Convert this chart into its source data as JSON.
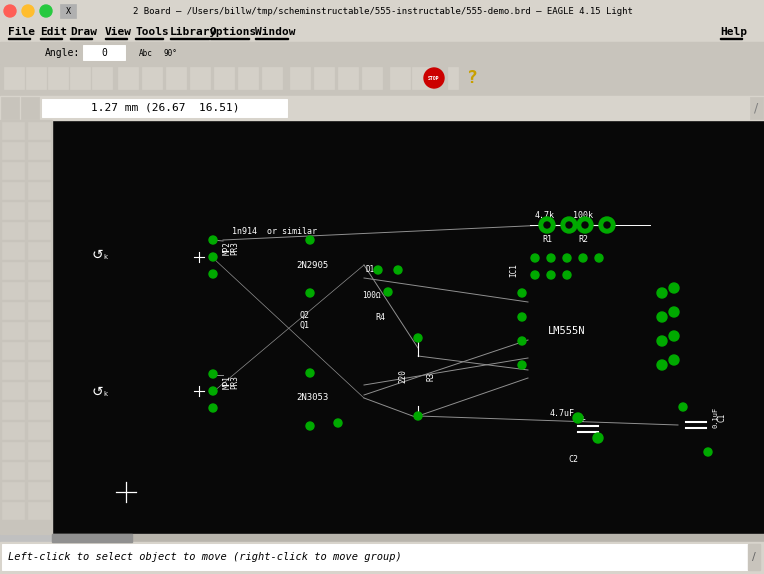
{
  "title_bar": "2 Board – /Users/billw/tmp/scheminstructable/555-instructable/555-demo.brd – EAGLE 4.15 Light",
  "menu_labels": [
    "File",
    "Edit",
    "Draw",
    "View",
    "Tools",
    "Library",
    "Options",
    "Window",
    "Help"
  ],
  "menu_x": [
    8,
    40,
    70,
    105,
    135,
    170,
    210,
    255,
    720
  ],
  "status_bar": "Left-click to select object to move (right-click to move group)",
  "coord_bar": "1.27 mm (26.67  16.51)",
  "bg_color": "#c0c0c0",
  "titlebar_bg": "#d8d4cc",
  "toolbar_bg": "#c8c4bc",
  "canvas_bg": "#080808",
  "board_edge": "#ffffff",
  "pcb_white": "#ffffff",
  "pcb_green": "#00aa00",
  "trace_color": "#909090",
  "fig_width": 7.64,
  "fig_height": 5.74
}
